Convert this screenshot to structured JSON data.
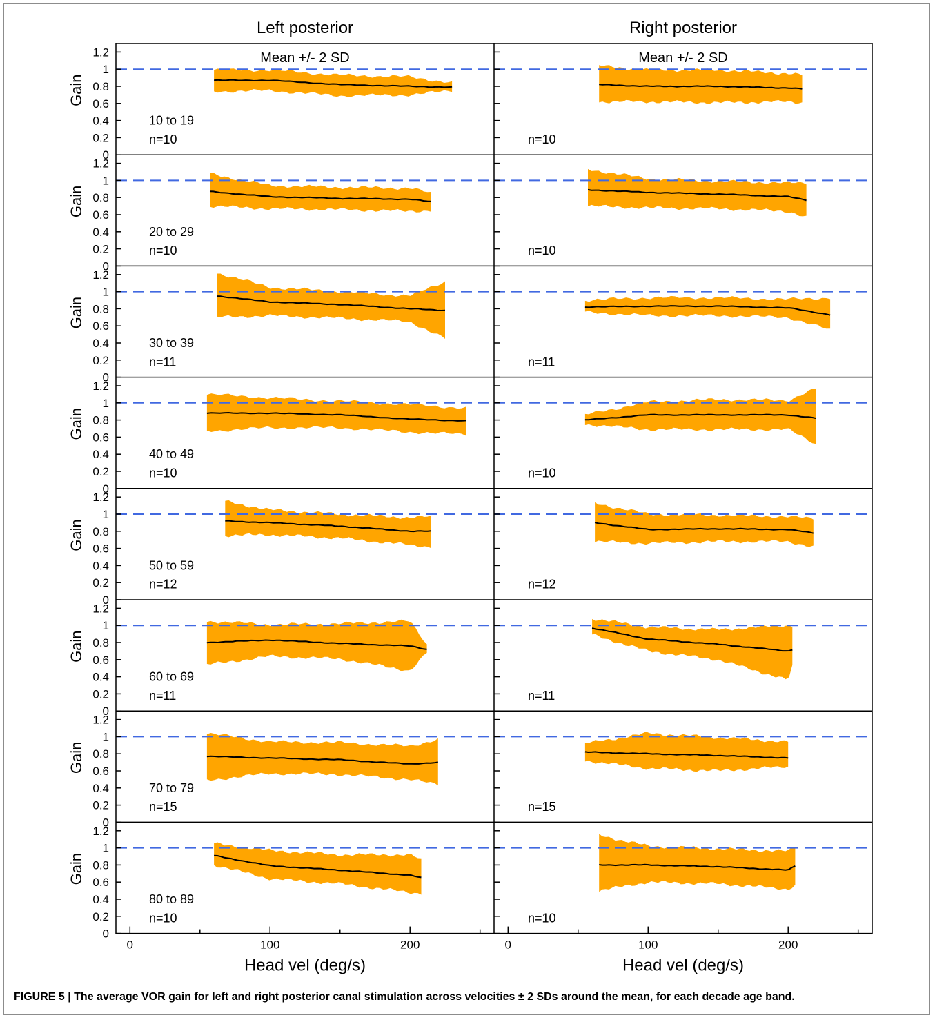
{
  "figure": {
    "caption": "FIGURE 5 | The average VOR gain for left and right posterior canal stimulation across velocities ± 2 SDs around the mean, for each decade age band."
  },
  "chart_data": {
    "type": "area",
    "columns": [
      {
        "title": "Left posterior",
        "annotation": "Mean +/- 2 SD",
        "xlabel": "Head vel (deg/s)"
      },
      {
        "title": "Right posterior",
        "annotation": "Mean +/- 2 SD",
        "xlabel": "Head vel (deg/s)"
      }
    ],
    "ylabel": "Gain",
    "xlim": [
      -10,
      260
    ],
    "ylim": [
      0,
      1.3
    ],
    "xticks": [
      0,
      100,
      200
    ],
    "yticks": [
      0,
      0.2,
      0.4,
      0.6,
      0.8,
      1,
      1.2
    ],
    "reference_line": {
      "y": 1,
      "style": "dashed",
      "color": "#4169e1"
    },
    "colors": {
      "band": "#ffa500",
      "mean": "#000000",
      "reference": "#4169e1"
    },
    "legend": "none",
    "rows": [
      {
        "age_band": "10 to 19",
        "left": {
          "n": "n=10",
          "x": [
            60,
            100,
            150,
            200,
            230
          ],
          "mean": [
            0.87,
            0.87,
            0.82,
            0.8,
            0.79
          ],
          "lower": [
            0.74,
            0.75,
            0.69,
            0.7,
            0.75
          ],
          "upper": [
            0.99,
            0.99,
            0.93,
            0.91,
            0.84
          ]
        },
        "right": {
          "n": "n=10",
          "x": [
            65,
            100,
            150,
            200,
            210
          ],
          "mean": [
            0.82,
            0.8,
            0.8,
            0.78,
            0.77
          ],
          "lower": [
            0.62,
            0.62,
            0.61,
            0.62,
            0.61
          ],
          "upper": [
            1.04,
            0.99,
            0.99,
            0.95,
            0.93
          ]
        }
      },
      {
        "age_band": "20 to 29",
        "left": {
          "n": "n=10",
          "x": [
            57,
            100,
            150,
            200,
            215
          ],
          "mean": [
            0.87,
            0.81,
            0.79,
            0.78,
            0.75
          ],
          "lower": [
            0.7,
            0.67,
            0.66,
            0.64,
            0.65
          ],
          "upper": [
            1.08,
            0.94,
            0.92,
            0.91,
            0.85
          ]
        },
        "right": {
          "n": "n=10",
          "x": [
            57,
            100,
            150,
            200,
            213
          ],
          "mean": [
            0.89,
            0.86,
            0.84,
            0.81,
            0.77
          ],
          "lower": [
            0.7,
            0.68,
            0.67,
            0.64,
            0.57
          ],
          "upper": [
            1.13,
            1.02,
            0.99,
            0.97,
            0.97
          ]
        }
      },
      {
        "age_band": "30 to 39",
        "left": {
          "n": "n=11",
          "x": [
            62,
            100,
            150,
            200,
            225
          ],
          "mean": [
            0.95,
            0.88,
            0.85,
            0.8,
            0.78
          ],
          "lower": [
            0.7,
            0.72,
            0.69,
            0.65,
            0.45
          ],
          "upper": [
            1.22,
            1.05,
            1.0,
            0.95,
            1.12
          ]
        },
        "right": {
          "n": "n=11",
          "x": [
            55,
            100,
            150,
            200,
            230
          ],
          "mean": [
            0.82,
            0.83,
            0.83,
            0.81,
            0.73
          ],
          "lower": [
            0.76,
            0.72,
            0.72,
            0.7,
            0.55
          ],
          "upper": [
            0.9,
            0.93,
            0.93,
            0.91,
            0.93
          ]
        }
      },
      {
        "age_band": "40 to 49",
        "left": {
          "n": "n=10",
          "x": [
            55,
            100,
            150,
            200,
            240
          ],
          "mean": [
            0.88,
            0.88,
            0.86,
            0.81,
            0.79
          ],
          "lower": [
            0.67,
            0.71,
            0.71,
            0.66,
            0.63
          ],
          "upper": [
            1.1,
            1.06,
            1.02,
            0.98,
            0.94
          ]
        },
        "right": {
          "n": "n=10",
          "x": [
            55,
            100,
            150,
            200,
            220
          ],
          "mean": [
            0.8,
            0.86,
            0.86,
            0.86,
            0.82
          ],
          "lower": [
            0.75,
            0.69,
            0.69,
            0.69,
            0.52
          ],
          "upper": [
            0.86,
            1.01,
            1.04,
            1.03,
            1.17
          ]
        }
      },
      {
        "age_band": "50 to 59",
        "left": {
          "n": "n=12",
          "x": [
            68,
            100,
            150,
            200,
            215
          ],
          "mean": [
            0.92,
            0.9,
            0.86,
            0.8,
            0.8
          ],
          "lower": [
            0.75,
            0.76,
            0.72,
            0.64,
            0.62
          ],
          "upper": [
            1.15,
            1.05,
            1.0,
            0.96,
            0.97
          ]
        },
        "right": {
          "n": "n=12",
          "x": [
            62,
            100,
            150,
            200,
            218
          ],
          "mean": [
            0.9,
            0.82,
            0.83,
            0.82,
            0.78
          ],
          "lower": [
            0.68,
            0.66,
            0.68,
            0.68,
            0.62
          ],
          "upper": [
            1.13,
            1.0,
            0.99,
            0.97,
            0.95
          ]
        }
      },
      {
        "age_band": "60 to 69",
        "left": {
          "n": "n=11",
          "x": [
            55,
            100,
            150,
            200,
            212
          ],
          "mean": [
            0.8,
            0.83,
            0.79,
            0.76,
            0.72
          ],
          "lower": [
            0.54,
            0.64,
            0.61,
            0.47,
            0.68
          ],
          "upper": [
            1.05,
            1.01,
            1.02,
            1.05,
            0.78
          ]
        },
        "right": {
          "n": "n=11",
          "x": [
            60,
            100,
            150,
            200,
            203
          ],
          "mean": [
            0.97,
            0.84,
            0.78,
            0.7,
            0.72
          ],
          "lower": [
            0.89,
            0.7,
            0.6,
            0.36,
            0.52
          ],
          "upper": [
            1.08,
            0.98,
            0.95,
            1.0,
            1.0
          ]
        }
      },
      {
        "age_band": "70 to 79",
        "left": {
          "n": "n=15",
          "x": [
            55,
            100,
            150,
            200,
            220
          ],
          "mean": [
            0.77,
            0.75,
            0.73,
            0.68,
            0.7
          ],
          "lower": [
            0.49,
            0.57,
            0.56,
            0.5,
            0.44
          ],
          "upper": [
            1.04,
            0.94,
            0.93,
            0.89,
            0.97
          ]
        },
        "right": {
          "n": "n=15",
          "x": [
            55,
            100,
            150,
            200,
            200
          ],
          "mean": [
            0.82,
            0.8,
            0.78,
            0.75,
            0.74
          ],
          "lower": [
            0.72,
            0.63,
            0.6,
            0.65,
            0.66
          ],
          "upper": [
            0.92,
            1.04,
            0.99,
            0.94,
            0.84
          ]
        }
      },
      {
        "age_band": "80 to 89",
        "left": {
          "n": "n=10",
          "x": [
            60,
            100,
            150,
            200,
            208
          ],
          "mean": [
            0.91,
            0.79,
            0.74,
            0.68,
            0.65
          ],
          "lower": [
            0.8,
            0.64,
            0.58,
            0.48,
            0.47
          ],
          "upper": [
            1.05,
            0.97,
            0.92,
            0.92,
            0.86
          ]
        },
        "right": {
          "n": "n=10",
          "x": [
            65,
            100,
            150,
            200,
            205
          ],
          "mean": [
            0.8,
            0.8,
            0.78,
            0.74,
            0.79
          ],
          "lower": [
            0.5,
            0.6,
            0.58,
            0.52,
            0.56
          ],
          "upper": [
            1.15,
            1.02,
            0.99,
            0.96,
            1.02
          ]
        }
      }
    ]
  }
}
